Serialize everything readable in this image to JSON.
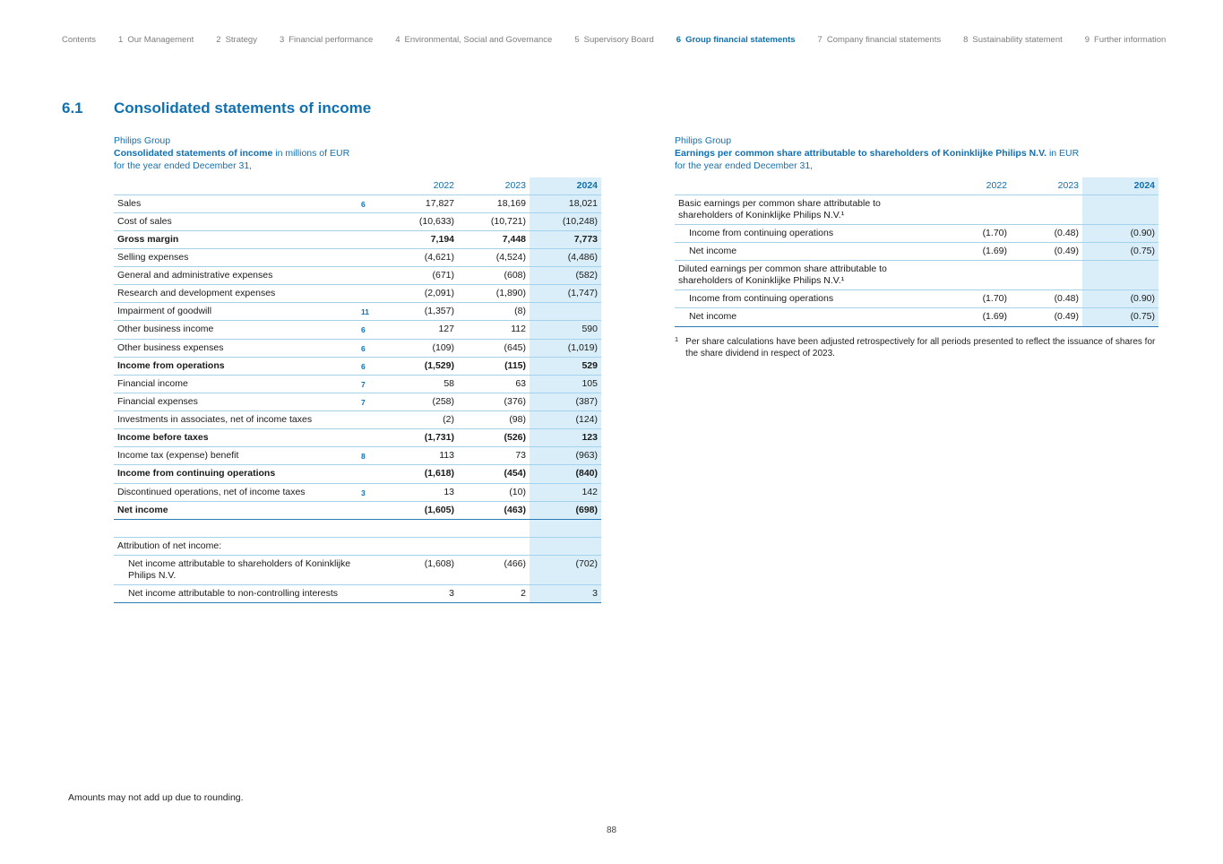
{
  "colors": {
    "accent": "#1070b0",
    "highlight": "#d9eef8",
    "line": "#a3d2ea",
    "strong": "#2b7cb4",
    "nav_gray": "#7d7d7d"
  },
  "nav": {
    "items": [
      {
        "num": "",
        "label": "Contents",
        "active": false
      },
      {
        "num": "1",
        "label": "Our Management",
        "active": false
      },
      {
        "num": "2",
        "label": "Strategy",
        "active": false
      },
      {
        "num": "3",
        "label": "Financial performance",
        "active": false
      },
      {
        "num": "4",
        "label": "Environmental, Social and Governance",
        "active": false
      },
      {
        "num": "5",
        "label": "Supervisory Board",
        "active": false
      },
      {
        "num": "6",
        "label": "Group financial statements",
        "active": true
      },
      {
        "num": "7",
        "label": "Company financial statements",
        "active": false
      },
      {
        "num": "8",
        "label": "Sustainability statement",
        "active": false
      },
      {
        "num": "9",
        "label": "Further information",
        "active": false
      }
    ]
  },
  "heading": {
    "number": "6.1",
    "title": "Consolidated statements of income"
  },
  "left_table": {
    "group": "Philips Group",
    "title": "Consolidated statements of income",
    "title_suffix": " in millions of EUR",
    "subtitle": "for the year ended December 31,",
    "years": [
      "2022",
      "2023",
      "2024"
    ],
    "rows": [
      {
        "type": "data",
        "label": "Sales",
        "note": "6",
        "values": [
          "17,827",
          "18,169",
          "18,021"
        ]
      },
      {
        "type": "data",
        "label": "Cost of sales",
        "values": [
          "(10,633)",
          "(10,721)",
          "(10,248)"
        ]
      },
      {
        "type": "data",
        "label": "Gross margin",
        "bold": true,
        "values": [
          "7,194",
          "7,448",
          "7,773"
        ]
      },
      {
        "type": "data",
        "label": "Selling expenses",
        "values": [
          "(4,621)",
          "(4,524)",
          "(4,486)"
        ]
      },
      {
        "type": "data",
        "label": "General and administrative expenses",
        "values": [
          "(671)",
          "(608)",
          "(582)"
        ]
      },
      {
        "type": "data",
        "label": "Research and development expenses",
        "values": [
          "(2,091)",
          "(1,890)",
          "(1,747)"
        ]
      },
      {
        "type": "data",
        "label": "Impairment of goodwill",
        "note": "11",
        "values": [
          "(1,357)",
          "(8)",
          ""
        ]
      },
      {
        "type": "data",
        "label": "Other business income",
        "note": "6",
        "values": [
          "127",
          "112",
          "590"
        ]
      },
      {
        "type": "data",
        "label": "Other business expenses",
        "note": "6",
        "values": [
          "(109)",
          "(645)",
          "(1,019)"
        ]
      },
      {
        "type": "data",
        "label": "Income from operations",
        "bold": true,
        "note": "6",
        "values": [
          "(1,529)",
          "(115)",
          "529"
        ]
      },
      {
        "type": "data",
        "label": "Financial income",
        "note": "7",
        "values": [
          "58",
          "63",
          "105"
        ]
      },
      {
        "type": "data",
        "label": "Financial expenses",
        "note": "7",
        "values": [
          "(258)",
          "(376)",
          "(387)"
        ]
      },
      {
        "type": "data",
        "label": "Investments in associates, net of income taxes",
        "values": [
          "(2)",
          "(98)",
          "(124)"
        ]
      },
      {
        "type": "data",
        "label": "Income before taxes",
        "bold": true,
        "values": [
          "(1,731)",
          "(526)",
          "123"
        ]
      },
      {
        "type": "data",
        "label": "Income tax (expense) benefit",
        "note": "8",
        "values": [
          "113",
          "73",
          "(963)"
        ]
      },
      {
        "type": "data",
        "label": "Income from continuing operations",
        "bold": true,
        "values": [
          "(1,618)",
          "(454)",
          "(840)"
        ]
      },
      {
        "type": "data",
        "label": "Discontinued operations, net of income taxes",
        "note": "3",
        "values": [
          "13",
          "(10)",
          "142"
        ]
      },
      {
        "type": "data",
        "label": "Net income",
        "bold": true,
        "strong": true,
        "values": [
          "(1,605)",
          "(463)",
          "(698)"
        ]
      },
      {
        "type": "spacer",
        "label": "",
        "values": [
          "",
          "",
          ""
        ]
      },
      {
        "type": "data",
        "label": "Attribution of net income:",
        "values": [
          "",
          "",
          ""
        ]
      },
      {
        "type": "data",
        "label": "Net income attributable to shareholders of Koninklijke Philips N.V.",
        "indent": true,
        "values": [
          "(1,608)",
          "(466)",
          "(702)"
        ]
      },
      {
        "type": "data",
        "label": "Net income attributable to non-controlling interests",
        "indent": true,
        "values": [
          "3",
          "2",
          "3"
        ]
      }
    ]
  },
  "right_table": {
    "group": "Philips Group",
    "title": "Earnings per common share attributable to shareholders of Koninklijke Philips N.V.",
    "title_suffix": " in EUR",
    "subtitle": "for the year ended December 31,",
    "years": [
      "2022",
      "2023",
      "2024"
    ],
    "rows": [
      {
        "type": "section",
        "label": "Basic earnings per common share attributable to shareholders of Koninklijke Philips N.V.¹",
        "values": [
          "",
          "",
          ""
        ]
      },
      {
        "type": "data",
        "label": "Income from continuing operations",
        "indent": true,
        "values": [
          "(1.70)",
          "(0.48)",
          "(0.90)"
        ]
      },
      {
        "type": "data",
        "label": "Net income",
        "indent": true,
        "values": [
          "(1.69)",
          "(0.49)",
          "(0.75)"
        ]
      },
      {
        "type": "section",
        "label": "Diluted earnings per common share attributable to shareholders of Koninklijke Philips N.V.¹",
        "values": [
          "",
          "",
          ""
        ]
      },
      {
        "type": "data",
        "label": "Income from continuing operations",
        "indent": true,
        "values": [
          "(1.70)",
          "(0.48)",
          "(0.90)"
        ]
      },
      {
        "type": "data",
        "label": "Net income",
        "indent": true,
        "values": [
          "(1.69)",
          "(0.49)",
          "(0.75)"
        ]
      }
    ]
  },
  "footnote": {
    "marker": "1",
    "text": "Per share calculations have been adjusted retrospectively for all periods presented to reflect the issuance of shares for the share dividend in respect of 2023."
  },
  "footer": {
    "rounding_note": "Amounts may not add up due to rounding.",
    "page_number": "88"
  }
}
